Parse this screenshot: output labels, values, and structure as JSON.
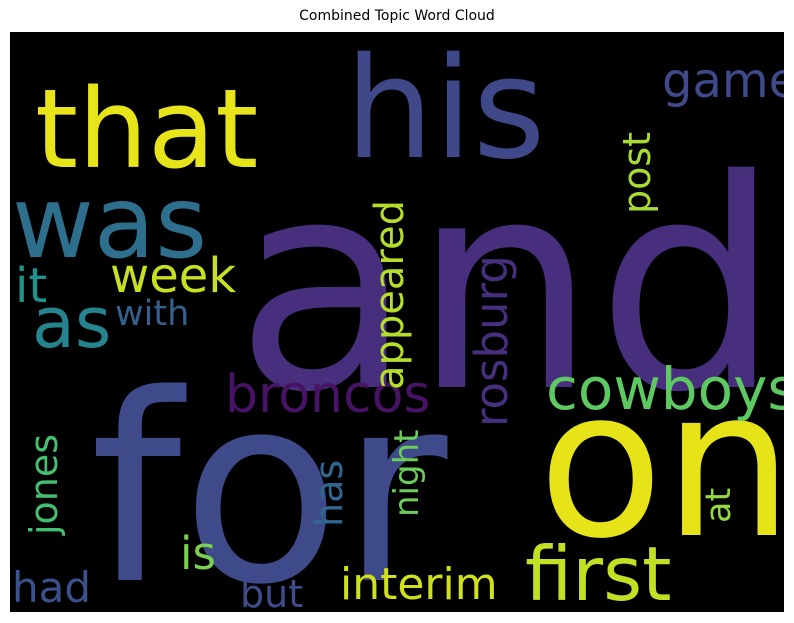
{
  "chart_data": {
    "type": "wordcloud",
    "title": "Combined Topic Word Cloud",
    "background": "#000000",
    "colormap": "viridis",
    "words": [
      {
        "text": "and",
        "color": "#482f7e",
        "rotated": false
      },
      {
        "text": "for",
        "color": "#3f4a8a",
        "rotated": false
      },
      {
        "text": "on",
        "color": "#e6e419",
        "rotated": false
      },
      {
        "text": "his",
        "color": "#3f4889",
        "rotated": false
      },
      {
        "text": "that",
        "color": "#e7e419",
        "rotated": false
      },
      {
        "text": "was",
        "color": "#2e6f8e",
        "rotated": false
      },
      {
        "text": "first",
        "color": "#c2df23",
        "rotated": false
      },
      {
        "text": "as",
        "color": "#25848e",
        "rotated": false
      },
      {
        "text": "cowboys",
        "color": "#5ec962",
        "rotated": false
      },
      {
        "text": "broncos",
        "color": "#471365",
        "rotated": false
      },
      {
        "text": "week",
        "color": "#c8e020",
        "rotated": false
      },
      {
        "text": "game",
        "color": "#3e4a89",
        "rotated": false
      },
      {
        "text": "appeared",
        "color": "#b5de2b",
        "rotated": true
      },
      {
        "text": "rosburg",
        "color": "#472f7d",
        "rotated": true
      },
      {
        "text": "jones",
        "color": "#44bf70",
        "rotated": true
      },
      {
        "text": "interim",
        "color": "#d0e11c",
        "rotated": false
      },
      {
        "text": "is",
        "color": "#7ad151",
        "rotated": false
      },
      {
        "text": "it",
        "color": "#20928c",
        "rotated": false
      },
      {
        "text": "with",
        "color": "#355f8d",
        "rotated": false
      },
      {
        "text": "post",
        "color": "#a8db34",
        "rotated": true
      },
      {
        "text": "had",
        "color": "#3b518b",
        "rotated": false
      },
      {
        "text": "but",
        "color": "#3e4c8a",
        "rotated": false
      },
      {
        "text": "has",
        "color": "#31668e",
        "rotated": true
      },
      {
        "text": "night",
        "color": "#6ccd5a",
        "rotated": true
      },
      {
        "text": "at",
        "color": "#95d840",
        "rotated": true
      }
    ]
  }
}
